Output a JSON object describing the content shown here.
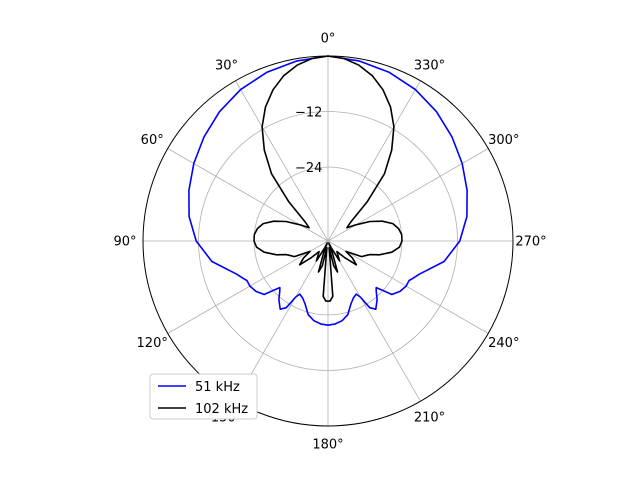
{
  "chart_data": {
    "type": "polar-line",
    "theta_zero_location": "top",
    "theta_direction": "counterclockwise",
    "r_range_db": [
      -40,
      0
    ],
    "r_tick_values": [
      -12,
      -24
    ],
    "r_tick_labels": [
      "−12",
      "−24"
    ],
    "angle_ticks_deg": [
      0,
      30,
      60,
      90,
      120,
      150,
      180,
      210,
      240,
      270,
      300,
      330
    ],
    "angle_tick_labels": [
      "0°",
      "30°",
      "60°",
      "90°",
      "120°",
      "150°",
      "180°",
      "210°",
      "240°",
      "270°",
      "300°",
      "330°"
    ],
    "grid": true,
    "legend_placement": "lower-left",
    "series": [
      {
        "name": "51 kHz",
        "color": "#0000ff",
        "symmetric": true,
        "points_deg_db": [
          [
            0,
            0
          ],
          [
            10,
            -0.5
          ],
          [
            20,
            -1.2
          ],
          [
            30,
            -2.2
          ],
          [
            40,
            -3.5
          ],
          [
            50,
            -5.0
          ],
          [
            60,
            -6.5
          ],
          [
            70,
            -8.0
          ],
          [
            80,
            -9.5
          ],
          [
            90,
            -11.5
          ],
          [
            100,
            -14.5
          ],
          [
            110,
            -19.0
          ],
          [
            114,
            -20.0
          ],
          [
            116,
            -20.5
          ],
          [
            120,
            -20.5
          ],
          [
            125,
            -21.0
          ],
          [
            130,
            -22.0
          ],
          [
            132,
            -24.0
          ],
          [
            134,
            -25.5
          ],
          [
            136,
            -25.0
          ],
          [
            140,
            -23.5
          ],
          [
            145,
            -22.0
          ],
          [
            148,
            -23.0
          ],
          [
            150,
            -26.0
          ],
          [
            152,
            -27.0
          ],
          [
            156,
            -26.5
          ],
          [
            160,
            -25.5
          ],
          [
            165,
            -23.5
          ],
          [
            170,
            -22.5
          ],
          [
            175,
            -22.0
          ],
          [
            180,
            -21.8
          ]
        ]
      },
      {
        "name": "102 kHz",
        "color": "#000000",
        "symmetric": true,
        "points_deg_db": [
          [
            0,
            0
          ],
          [
            5,
            -0.4
          ],
          [
            10,
            -1.4
          ],
          [
            15,
            -3.0
          ],
          [
            20,
            -5.2
          ],
          [
            25,
            -8.0
          ],
          [
            30,
            -11.5
          ],
          [
            35,
            -16.0
          ],
          [
            40,
            -21.0
          ],
          [
            45,
            -28.0
          ],
          [
            50,
            -33.5
          ],
          [
            55,
            -35.0
          ],
          [
            60,
            -33.0
          ],
          [
            65,
            -30.0
          ],
          [
            70,
            -27.5
          ],
          [
            75,
            -25.5
          ],
          [
            80,
            -24.5
          ],
          [
            85,
            -24.0
          ],
          [
            90,
            -24.0
          ],
          [
            95,
            -24.5
          ],
          [
            100,
            -26.0
          ],
          [
            105,
            -28.5
          ],
          [
            108,
            -30.5
          ],
          [
            110,
            -31.0
          ],
          [
            115,
            -32.0
          ],
          [
            118,
            -34.5
          ],
          [
            120,
            -35.5
          ],
          [
            125,
            -33.5
          ],
          [
            130,
            -32.0
          ],
          [
            135,
            -35.0
          ],
          [
            140,
            -37.0
          ],
          [
            150,
            -35.0
          ],
          [
            155,
            -38.5
          ],
          [
            158,
            -39.5
          ],
          [
            160,
            -37.0
          ],
          [
            163,
            -33.0
          ],
          [
            167,
            -34.5
          ],
          [
            170,
            -38.5
          ],
          [
            175,
            -28.0
          ],
          [
            178,
            -27.0
          ],
          [
            180,
            -27.0
          ]
        ]
      }
    ]
  }
}
